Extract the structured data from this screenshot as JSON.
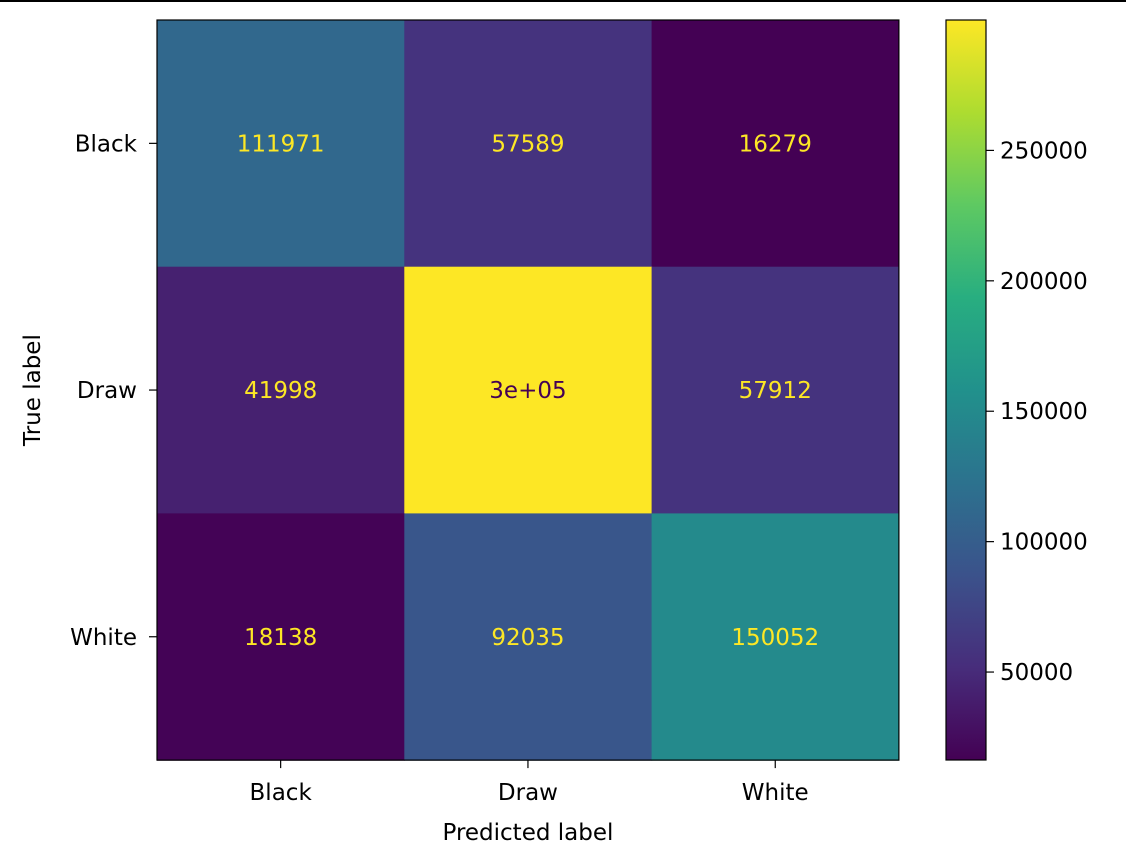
{
  "chart_data": {
    "type": "heatmap",
    "title": "",
    "xlabel": "Predicted label",
    "ylabel": "True label",
    "x_categories": [
      "Black",
      "Draw",
      "White"
    ],
    "y_categories": [
      "Black",
      "Draw",
      "White"
    ],
    "values": [
      [
        111971,
        57589,
        16279
      ],
      [
        41998,
        300000,
        57912
      ],
      [
        18138,
        92035,
        150052
      ]
    ],
    "cell_labels": [
      [
        "111971",
        "57589",
        "16279"
      ],
      [
        "41998",
        "3e+05",
        "57912"
      ],
      [
        "18138",
        "92035",
        "150052"
      ]
    ],
    "colormap": "viridis",
    "colorbar": {
      "range": [
        16279,
        300000
      ],
      "ticks": [
        50000,
        100000,
        150000,
        200000,
        250000
      ],
      "tick_labels": [
        "50000",
        "100000",
        "150000",
        "200000",
        "250000"
      ]
    },
    "grid": false,
    "legend": "colorbar-right"
  }
}
